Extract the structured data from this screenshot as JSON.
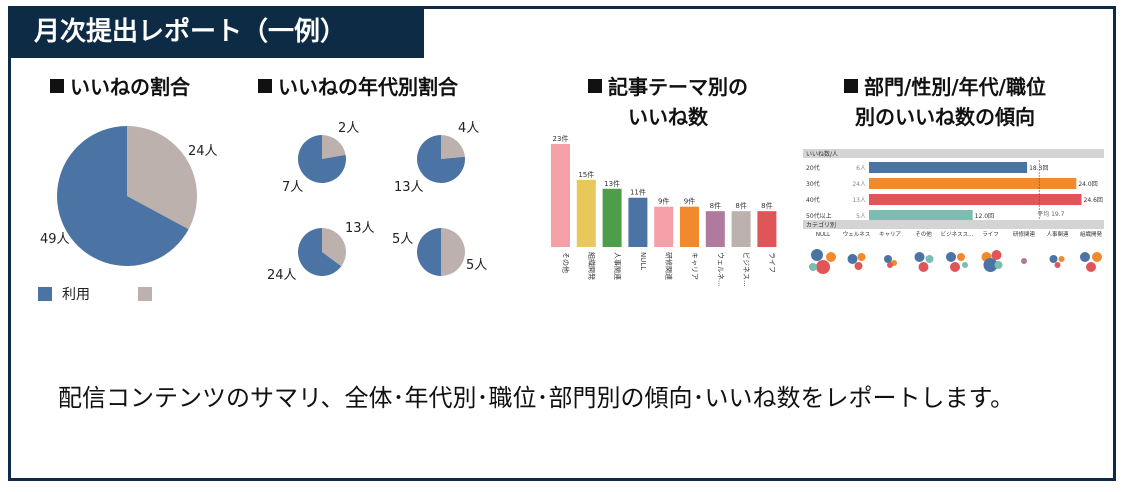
{
  "title": "月次提出レポート（一例）",
  "colors": {
    "primary": "#4b73a4",
    "secondary": "#bdb1ad",
    "frame": "#0e2b45"
  },
  "sections": {
    "likes_ratio": {
      "heading": "いいねの割合",
      "chart_data": {
        "type": "pie",
        "slices": [
          {
            "label": "49人",
            "value": 49,
            "color": "#4b73a4"
          },
          {
            "label": "24人",
            "value": 24,
            "color": "#bdb1ad"
          }
        ]
      },
      "legend": [
        {
          "label": "利用",
          "color": "#4b73a4"
        },
        {
          "label": "",
          "color": "#bdb1ad"
        }
      ]
    },
    "age_ratio": {
      "heading": "いいねの年代別割合",
      "chart_data": [
        {
          "type": "pie",
          "slices": [
            {
              "label": "7人",
              "value": 7
            },
            {
              "label": "2人",
              "value": 2
            }
          ]
        },
        {
          "type": "pie",
          "slices": [
            {
              "label": "13人",
              "value": 13
            },
            {
              "label": "4人",
              "value": 4
            }
          ]
        },
        {
          "type": "pie",
          "slices": [
            {
              "label": "24人",
              "value": 24
            },
            {
              "label": "13人",
              "value": 13
            }
          ]
        },
        {
          "type": "pie",
          "slices": [
            {
              "label": "5人",
              "value": 5
            },
            {
              "label": "5人",
              "value": 5
            }
          ]
        }
      ]
    },
    "theme_likes": {
      "heading_line1": "記事テーマ別の",
      "heading_line2": "いいね数",
      "chart_data": {
        "type": "bar",
        "categories": [
          "その他",
          "組織開発",
          "人事関連",
          "NULL",
          "研修関連",
          "キャリア",
          "ウェルネ...",
          "ビジネス...",
          "ライフ"
        ],
        "values": [
          23,
          15,
          13,
          11,
          9,
          9,
          8,
          8,
          8
        ],
        "data_labels": [
          "23件",
          "15件",
          "13件",
          "11件",
          "9件",
          "9件",
          "8件",
          "8件",
          "8件"
        ],
        "colors": [
          "#f5a0a8",
          "#e8c85a",
          "#4f9c4b",
          "#4b73a4",
          "#f5a0a8",
          "#f08a2c",
          "#b07a9e",
          "#bdb1ad",
          "#e05558"
        ],
        "ylim": [
          0,
          25
        ]
      }
    },
    "dept_trend": {
      "heading_line1": "部門/性別/年代/職位",
      "heading_line2": "別のいいね数の傾向",
      "table_header": "いいね数/人",
      "chart_data": {
        "type": "bar",
        "orientation": "horizontal",
        "categories": [
          "20代",
          "30代",
          "40代",
          "50代以上"
        ],
        "people": [
          "6人",
          "24人",
          "13人",
          "5人"
        ],
        "values": [
          18.3,
          24.0,
          24.6,
          12.0
        ],
        "data_labels": [
          "18.3回",
          "24.0回",
          "24.6回",
          "12.0回"
        ],
        "colors": [
          "#4b73a4",
          "#f08a2c",
          "#e05558",
          "#7bbdb0"
        ],
        "average_label": "平均 19.7",
        "average": 19.7,
        "xlim": [
          0,
          25
        ]
      },
      "category_header": "カテゴリ別",
      "category_cols": [
        "NULL",
        "ウェルネス",
        "キャリア",
        "その他",
        "ビジネスス...",
        "ライフ",
        "研修関連",
        "人事関連",
        "組織開発"
      ]
    }
  },
  "description": "配信コンテンツのサマリ、全体･年代別･職位･部門別の傾向･いいね数をレポートします。"
}
